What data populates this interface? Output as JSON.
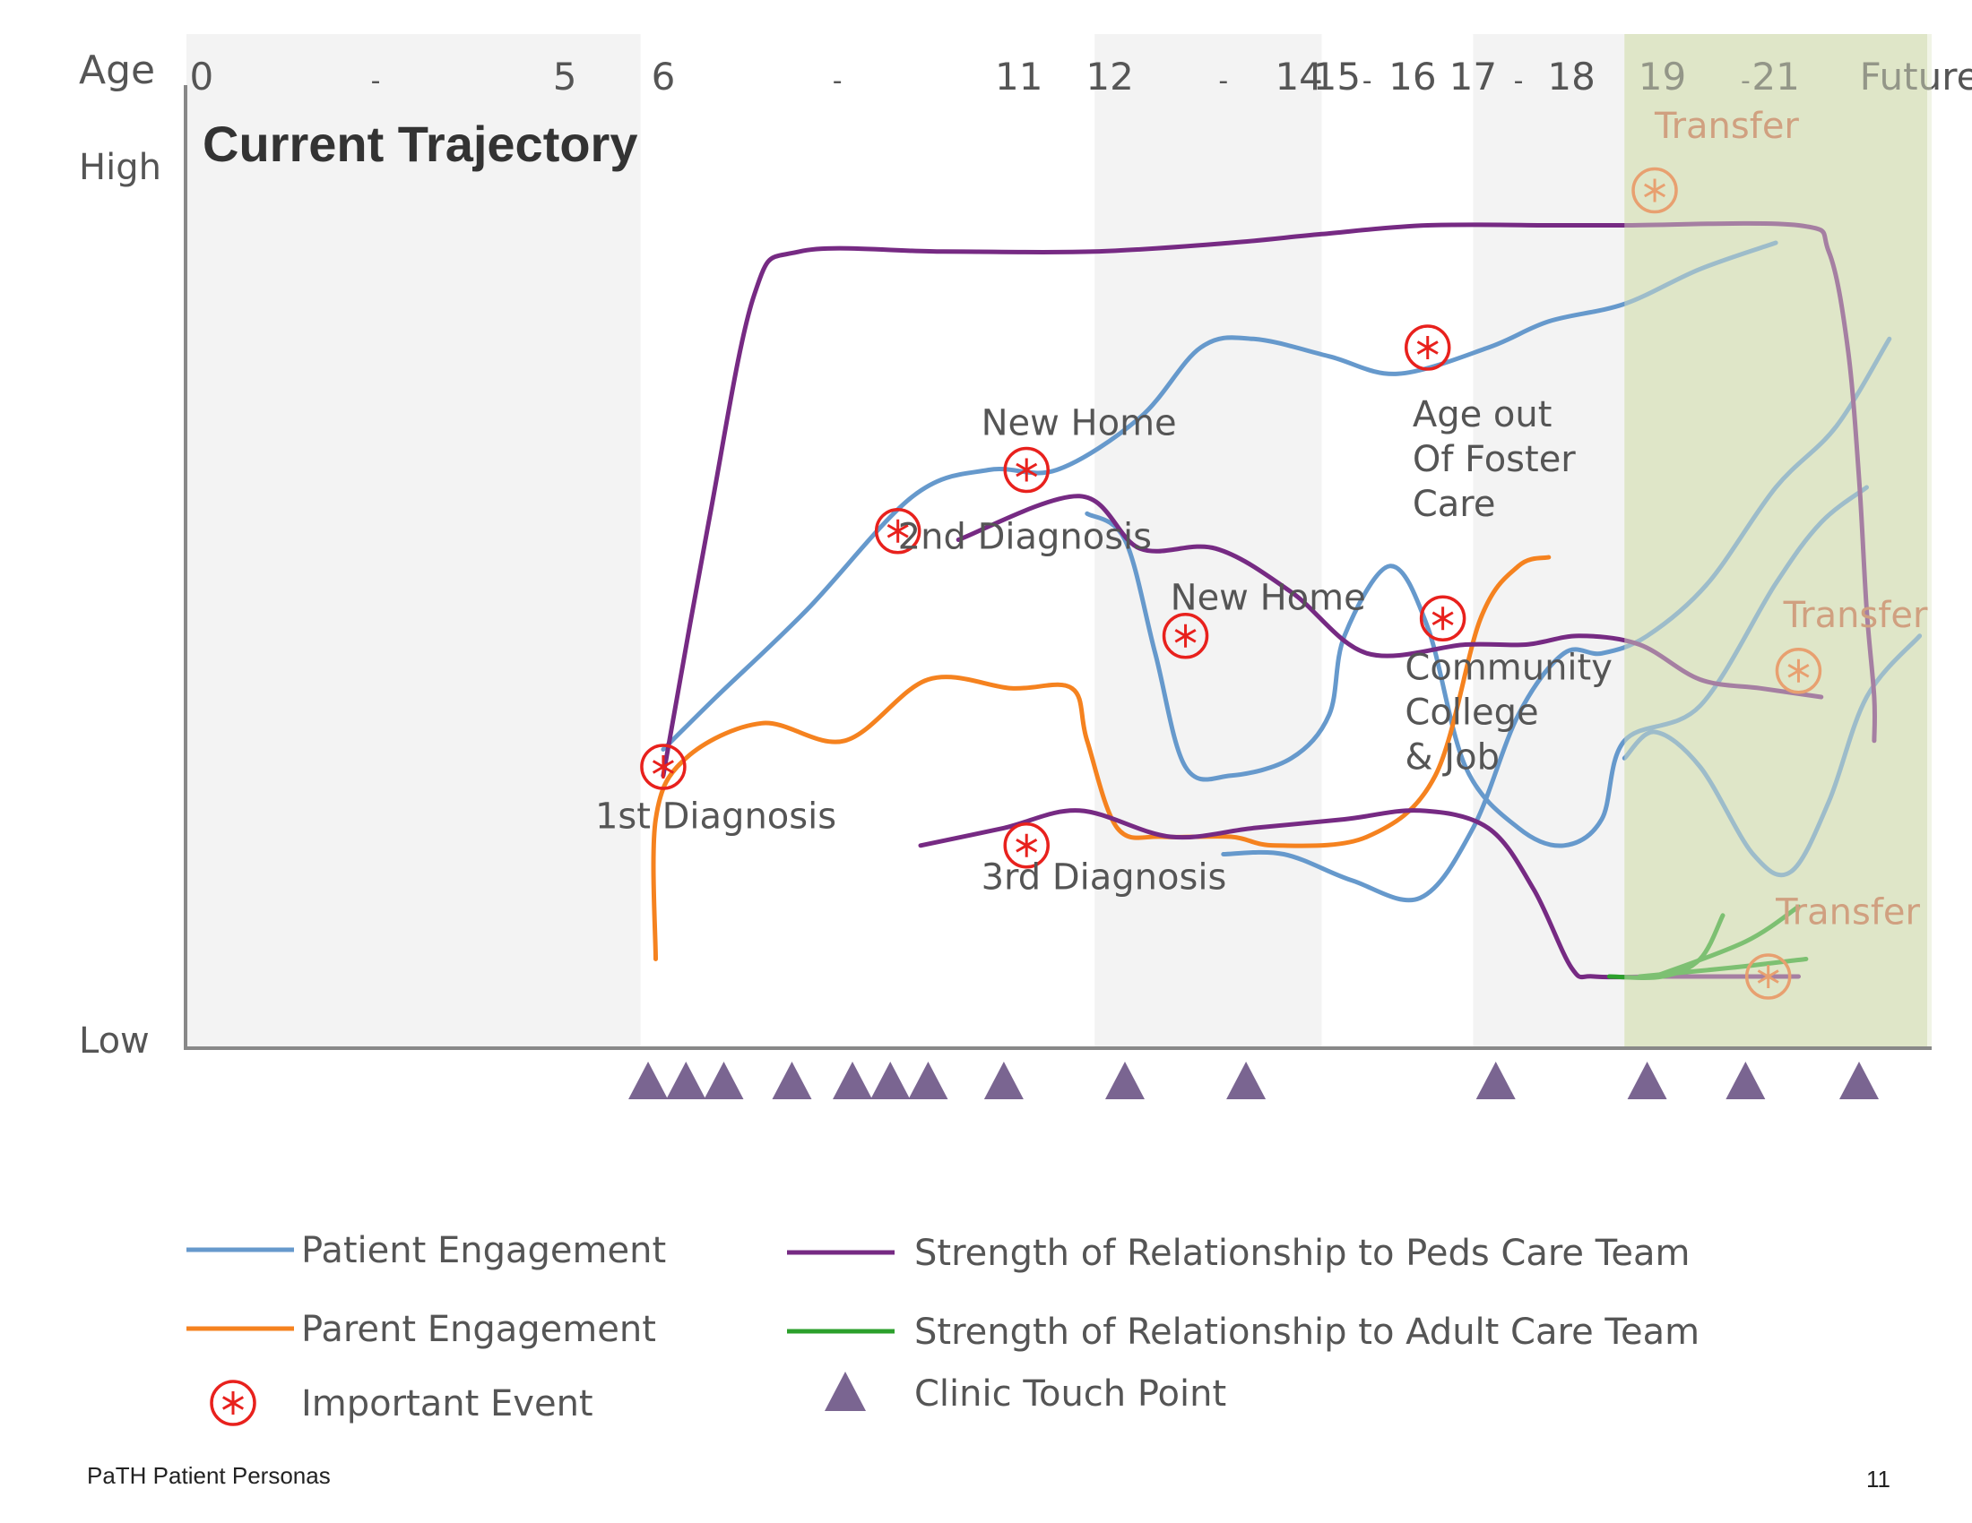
{
  "chart_data": {
    "type": "line",
    "title": "Current Trajectory",
    "axis_label_x": "Age",
    "axis_label_y_top": "High",
    "axis_label_y_bottom": "Low",
    "age_labels": [
      {
        "text": "0",
        "age": 0.2
      },
      {
        "text": "-",
        "age": 2.5
      },
      {
        "text": "5",
        "age": 5.0
      },
      {
        "text": "6",
        "age": 6.3
      },
      {
        "text": "-",
        "age": 8.6
      },
      {
        "text": "11",
        "age": 11.0
      },
      {
        "text": "12",
        "age": 12.2
      },
      {
        "text": "-",
        "age": 13.7
      },
      {
        "text": "14",
        "age": 14.7
      },
      {
        "text": "15",
        "age": 15.2
      },
      {
        "text": "-",
        "age": 15.6
      },
      {
        "text": "16",
        "age": 16.2
      },
      {
        "text": "17",
        "age": 17.0
      },
      {
        "text": "-",
        "age": 17.6
      },
      {
        "text": "18",
        "age": 18.3
      },
      {
        "text": "19",
        "age": 19.5
      },
      {
        "text": "-",
        "age": 20.6
      },
      {
        "text": "21",
        "age": 21.0
      },
      {
        "text": "Future",
        "age": 22.9
      }
    ],
    "age_bands": [
      {
        "from": 0,
        "to": 6,
        "color": "#f3f3f3"
      },
      {
        "from": 12,
        "to": 15,
        "color": "#f3f3f3"
      },
      {
        "from": 17,
        "to": 19,
        "color": "#f3f3f3"
      },
      {
        "from": 19,
        "to": 23,
        "color": "#dfe6c8"
      }
    ],
    "xlim": [
      0,
      23
    ],
    "ylim": [
      0,
      100
    ],
    "series": [
      {
        "name": "Patient Engagement",
        "color": "#6699cc",
        "points": [
          [
            6.3,
            34
          ],
          [
            7.0,
            40
          ],
          [
            8.2,
            50
          ],
          [
            9.6,
            63
          ],
          [
            10.6,
            66
          ],
          [
            11.5,
            66
          ],
          [
            12.6,
            72
          ],
          [
            13.4,
            80
          ],
          [
            14.1,
            81
          ],
          [
            15.1,
            79
          ],
          [
            16.0,
            77
          ],
          [
            17.2,
            80
          ],
          [
            18.0,
            83
          ],
          [
            19.0,
            85
          ],
          [
            20.0,
            89
          ],
          [
            21.0,
            92
          ]
        ]
      },
      {
        "name": "Patient Engagement",
        "color": "#6699cc",
        "points": [
          [
            11.9,
            61
          ],
          [
            12.4,
            58
          ],
          [
            12.8,
            45
          ],
          [
            13.2,
            32
          ],
          [
            13.8,
            31
          ],
          [
            14.6,
            33
          ],
          [
            15.1,
            38
          ],
          [
            15.3,
            47
          ],
          [
            15.9,
            55
          ],
          [
            16.4,
            48
          ],
          [
            16.9,
            32
          ],
          [
            17.6,
            25
          ],
          [
            18.2,
            23
          ],
          [
            18.7,
            26
          ],
          [
            19.0,
            35
          ],
          [
            20.0,
            39
          ],
          [
            21.0,
            53
          ],
          [
            21.6,
            60
          ],
          [
            22.2,
            64
          ]
        ]
      },
      {
        "name": "Patient Engagement",
        "color": "#6699cc",
        "points": [
          [
            13.7,
            22
          ],
          [
            14.5,
            22
          ],
          [
            15.4,
            19
          ],
          [
            16.3,
            17
          ],
          [
            17.0,
            25
          ],
          [
            17.6,
            38
          ],
          [
            18.2,
            45
          ],
          [
            18.7,
            45
          ],
          [
            19.3,
            47
          ],
          [
            20.1,
            53
          ],
          [
            21.0,
            64
          ],
          [
            21.8,
            71
          ],
          [
            22.5,
            81
          ]
        ]
      },
      {
        "name": "Patient Engagement",
        "color": "#6699cc",
        "points": [
          [
            19.0,
            33
          ],
          [
            19.4,
            36
          ],
          [
            20.0,
            32
          ],
          [
            20.7,
            22
          ],
          [
            21.2,
            20
          ],
          [
            21.7,
            28
          ],
          [
            22.2,
            40
          ],
          [
            22.9,
            47
          ]
        ]
      },
      {
        "name": "Parent Engagement",
        "color": "#f5821f",
        "points": [
          [
            6.2,
            10
          ],
          [
            6.2,
            26
          ],
          [
            6.6,
            33
          ],
          [
            7.6,
            37
          ],
          [
            8.7,
            35
          ],
          [
            9.8,
            42
          ],
          [
            10.9,
            41
          ],
          [
            11.7,
            41
          ],
          [
            11.9,
            35
          ],
          [
            12.3,
            25
          ],
          [
            12.9,
            24
          ],
          [
            13.8,
            24
          ],
          [
            14.4,
            23
          ],
          [
            15.6,
            24
          ],
          [
            16.5,
            31
          ],
          [
            17.1,
            49
          ],
          [
            17.6,
            55
          ],
          [
            18.0,
            56
          ]
        ]
      },
      {
        "name": "Strength of Relationship to Peds Care Team",
        "color": "#762a83",
        "points": [
          [
            6.3,
            31
          ],
          [
            6.9,
            60
          ],
          [
            7.5,
            86
          ],
          [
            8.1,
            91
          ],
          [
            10.0,
            91
          ],
          [
            12.0,
            91
          ],
          [
            13.8,
            92
          ],
          [
            15.0,
            93
          ],
          [
            16.4,
            94
          ],
          [
            18.1,
            94
          ],
          [
            19.0,
            94
          ],
          [
            21.3,
            94
          ],
          [
            21.7,
            91
          ],
          [
            21.95,
            80
          ],
          [
            22.1,
            65
          ],
          [
            22.2,
            50
          ],
          [
            22.3,
            40
          ],
          [
            22.3,
            35
          ]
        ]
      },
      {
        "name": "Strength of Relationship to Peds Care Team",
        "color": "#762a83",
        "points": [
          [
            10.2,
            58
          ],
          [
            11.8,
            63
          ],
          [
            12.6,
            57
          ],
          [
            13.6,
            57
          ],
          [
            14.6,
            52
          ],
          [
            15.6,
            45
          ],
          [
            16.9,
            46
          ],
          [
            17.7,
            46
          ],
          [
            18.4,
            47
          ],
          [
            19.2,
            46
          ],
          [
            20.0,
            42
          ],
          [
            20.8,
            41
          ],
          [
            21.6,
            40
          ]
        ]
      },
      {
        "name": "Strength of Relationship to Peds Care Team",
        "color": "#762a83",
        "points": [
          [
            9.7,
            23
          ],
          [
            10.8,
            25
          ],
          [
            11.8,
            27
          ],
          [
            13.0,
            24
          ],
          [
            14.1,
            25
          ],
          [
            15.3,
            26
          ],
          [
            16.3,
            27
          ],
          [
            17.2,
            25
          ],
          [
            17.8,
            18
          ],
          [
            18.3,
            9
          ],
          [
            18.6,
            8
          ],
          [
            19.5,
            8
          ],
          [
            20.5,
            8
          ],
          [
            21.3,
            8
          ]
        ]
      },
      {
        "name": "Strength of Relationship to Adult Care Team",
        "color": "#2ca02c",
        "points": [
          [
            18.8,
            8
          ],
          [
            19.5,
            8
          ],
          [
            20.0,
            10
          ],
          [
            20.3,
            15
          ]
        ]
      },
      {
        "name": "Strength of Relationship to Adult Care Team",
        "color": "#2ca02c",
        "points": [
          [
            19.4,
            8
          ],
          [
            20.6,
            12
          ],
          [
            21.3,
            16
          ]
        ]
      },
      {
        "name": "Strength of Relationship to Adult Care Team",
        "color": "#2ca02c",
        "points": [
          [
            19.2,
            8
          ],
          [
            20.4,
            9
          ],
          [
            21.4,
            10
          ]
        ]
      }
    ],
    "events": [
      {
        "age": 6.3,
        "value": 32,
        "label": [
          "1st Diagnosis"
        ],
        "label_age": 5.4,
        "label_value": 25,
        "future": false
      },
      {
        "age": 9.4,
        "value": 59,
        "label": [
          "2nd Diagnosis"
        ],
        "label_age": 9.4,
        "label_value": 57,
        "future": false
      },
      {
        "age": 11.1,
        "value": 66,
        "label": [
          "New Home"
        ],
        "label_age": 10.5,
        "label_value": 70,
        "future": false
      },
      {
        "age": 11.1,
        "value": 23,
        "label": [
          "3rd Diagnosis"
        ],
        "label_age": 10.5,
        "label_value": 18,
        "future": false
      },
      {
        "age": 13.2,
        "value": 47,
        "label": [
          "New Home"
        ],
        "label_age": 13.0,
        "label_value": 50,
        "future": false
      },
      {
        "age": 16.4,
        "value": 80,
        "label": [
          "Age out",
          "Of Foster",
          "Care"
        ],
        "label_age": 16.2,
        "label_value": 71,
        "future": false
      },
      {
        "age": 16.6,
        "value": 49,
        "label": [
          "Community",
          "College",
          "& Job"
        ],
        "label_age": 16.1,
        "label_value": 42,
        "future": false
      },
      {
        "age": 19.4,
        "value": 98,
        "label": [
          "Transfer"
        ],
        "label_age": 19.4,
        "label_value": 104,
        "future": true
      },
      {
        "age": 21.3,
        "value": 43,
        "label": [
          "Transfer"
        ],
        "label_age": 21.1,
        "label_value": 48,
        "future": true
      },
      {
        "age": 20.9,
        "value": 8,
        "label": [
          "Transfer"
        ],
        "label_age": 21.0,
        "label_value": 14,
        "future": true
      }
    ],
    "touch_points_age": [
      6.1,
      6.6,
      7.1,
      8.0,
      8.8,
      9.3,
      9.8,
      10.8,
      12.4,
      14.0,
      17.3,
      19.3,
      20.6,
      22.1
    ],
    "legend": [
      {
        "kind": "line",
        "color": "#6699cc",
        "label": "Patient Engagement"
      },
      {
        "kind": "line",
        "color": "#762a83",
        "label": "Strength of Relationship to Peds Care Team"
      },
      {
        "kind": "line",
        "color": "#f5821f",
        "label": "Parent Engagement"
      },
      {
        "kind": "line",
        "color": "#2ca02c",
        "label": "Strength of Relationship to Adult Care Team"
      },
      {
        "kind": "event",
        "color": "#e8211d",
        "label": "Important Event"
      },
      {
        "kind": "triangle",
        "color": "#7a6591",
        "label": "Clinic Touch Point"
      }
    ],
    "future_overlay_color": "#dfe6c8"
  },
  "footer": {
    "left": "PaTH Patient Personas",
    "right": "11"
  }
}
